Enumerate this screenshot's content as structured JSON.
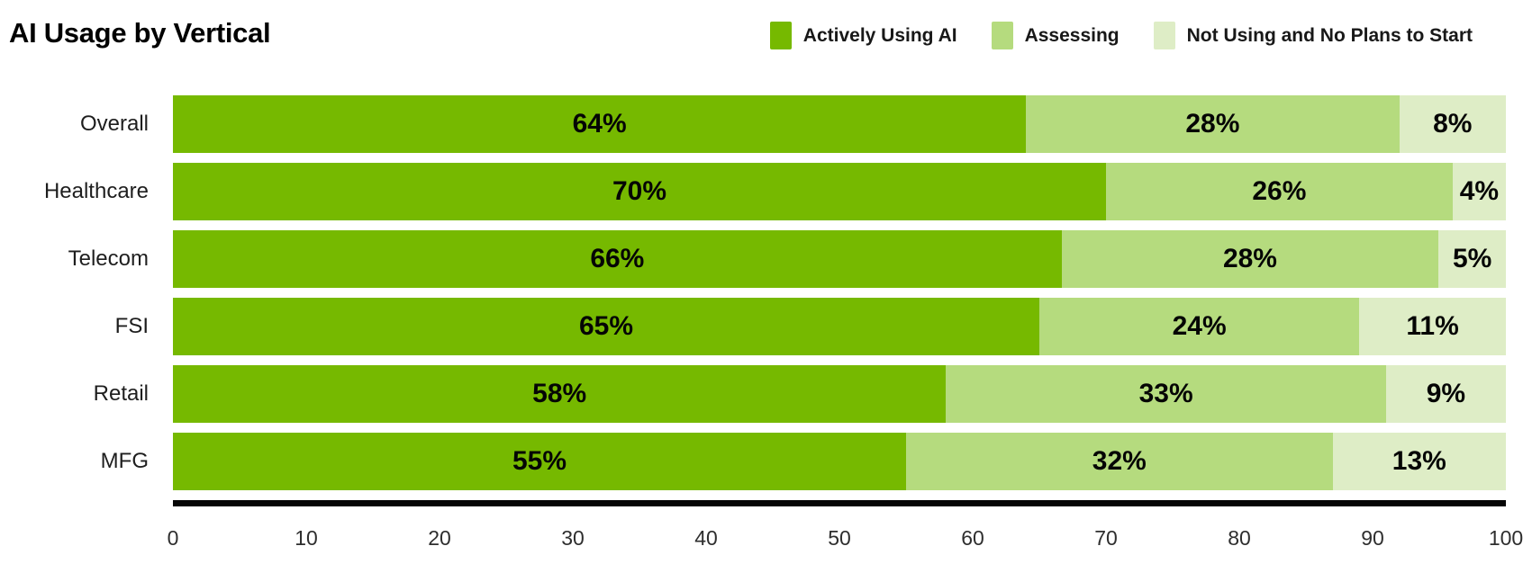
{
  "title": "AI Usage by Vertical",
  "legend": [
    {
      "label": "Actively Using AI",
      "color": "#76B900"
    },
    {
      "label": "Assessing",
      "color": "#B5DB7E"
    },
    {
      "label": "Not Using and No Plans to Start",
      "color": "#DEEDC6"
    }
  ],
  "chart_data": {
    "type": "bar",
    "orientation": "horizontal",
    "stacked": true,
    "title": "AI Usage by Vertical",
    "categories": [
      "Overall",
      "Healthcare",
      "Telecom",
      "FSI",
      "Retail",
      "MFG"
    ],
    "series": [
      {
        "name": "Actively Using AI",
        "color": "#76B900",
        "values": [
          64,
          70,
          66,
          65,
          58,
          55
        ]
      },
      {
        "name": "Assessing",
        "color": "#B5DB7E",
        "values": [
          28,
          26,
          28,
          24,
          33,
          32
        ]
      },
      {
        "name": "Not Using and No Plans to Start",
        "color": "#DEEDC6",
        "values": [
          8,
          4,
          5,
          11,
          9,
          13
        ]
      }
    ],
    "value_suffix": "%",
    "xlabel": "",
    "ylabel": "",
    "xlim": [
      0,
      100
    ],
    "x_ticks": [
      "0",
      "10",
      "20",
      "30",
      "40",
      "50",
      "60",
      "70",
      "80",
      "90",
      "100"
    ],
    "grid": false,
    "legend_position": "top-right"
  }
}
